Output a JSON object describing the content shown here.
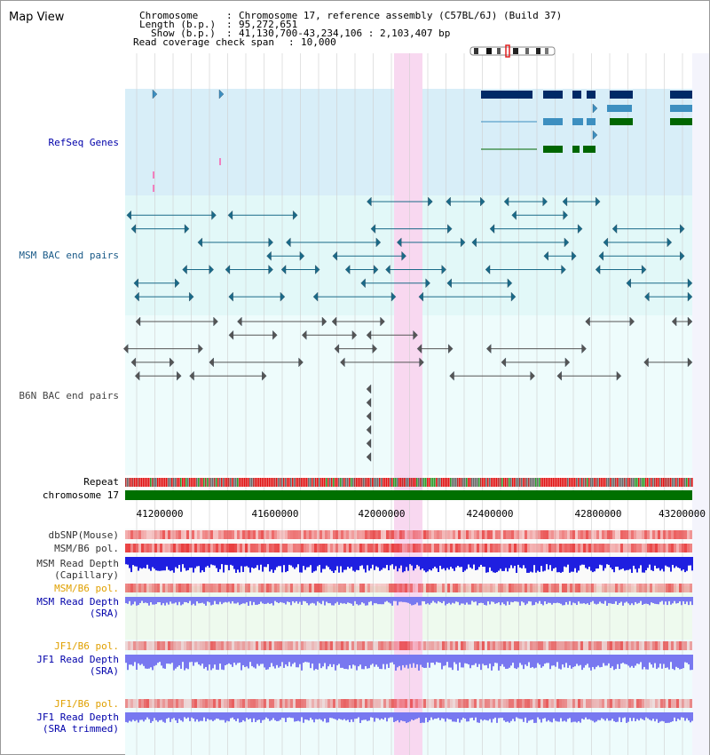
{
  "view_title": "Map View",
  "header": {
    "chromosome_label": "Chromosome",
    "chromosome_value": "Chromosome 17, reference assembly (C57BL/6J) (Build 37)",
    "length_label": "Length (b.p.)",
    "length_value": "95,272,651",
    "show_label": "Show (b.p.)",
    "show_value": "41,130,700-43,234,106 : 2,103,407 bp",
    "coverage_label": "Read coverage check span",
    "coverage_value": "10,000"
  },
  "tracks": {
    "refseq_genes": "RefSeq Genes",
    "msm_bac": "MSM BAC end pairs",
    "b6n_bac": "B6N BAC end pairs",
    "repeat": "Repeat",
    "chromosome": "chromosome 17",
    "dbsnp": "dbSNP(Mouse)",
    "msm_b6_pol": "MSM/B6 pol.",
    "msm_depth_cap_1": "MSM Read Depth",
    "msm_depth_cap_2": "(Capillary)",
    "msm_b6_pol_sra": "MSM/B6 pol.",
    "msm_depth_sra_1": "MSM Read Depth",
    "msm_depth_sra_2": "(SRA)",
    "jf1_b6_pol": "JF1/B6 pol.",
    "jf1_depth_1": "JF1 Read Depth",
    "jf1_depth_2": "(SRA)",
    "jf1_b6_pol_2": "JF1/B6 pol.",
    "jf1_trim_1": "JF1 Read Depth",
    "jf1_trim_2": "(SRA trimmed)"
  },
  "axis": {
    "ticks": [
      "41200000",
      "41600000",
      "42000000",
      "42400000",
      "42800000",
      "43200000"
    ]
  },
  "colors": {
    "refseq_bg": "#d8eef8",
    "msm_bg": "#e2f8f8",
    "b6n_bg": "#eefcfc",
    "highlight": "#f8d8f0",
    "gene_dark": "#002a66",
    "gene_mid": "#3d8fc0",
    "gene_green": "#006600",
    "bac_msm": "#1a6a88",
    "bac_b6n": "#555555",
    "depth": "#1f1fe0",
    "depth_light": "#7878f0",
    "chrom_bar": "#007000"
  }
}
